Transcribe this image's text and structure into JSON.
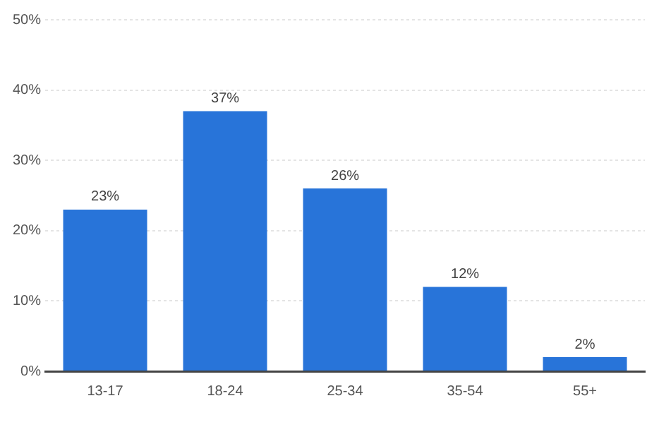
{
  "chart_data": {
    "type": "bar",
    "categories": [
      "13-17",
      "18-24",
      "25-34",
      "35-54",
      "55+"
    ],
    "values": [
      23,
      37,
      26,
      12,
      2
    ],
    "value_labels": [
      "23%",
      "37%",
      "26%",
      "12%",
      "2%"
    ],
    "color": "#2874d9",
    "ylim": [
      0,
      50
    ],
    "yticks": [
      {
        "value": 0,
        "label": "0%"
      },
      {
        "value": 10,
        "label": "10%"
      },
      {
        "value": 20,
        "label": "20%"
      },
      {
        "value": 30,
        "label": "30%"
      },
      {
        "value": 40,
        "label": "40%"
      },
      {
        "value": 50,
        "label": "50%"
      }
    ],
    "grid": "y",
    "legend": false
  }
}
